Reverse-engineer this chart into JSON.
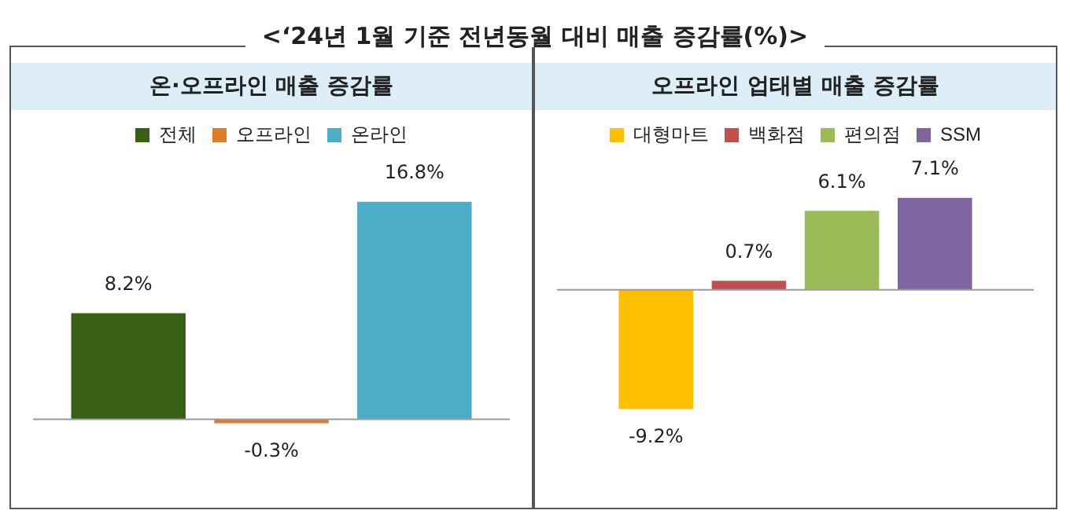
{
  "chart_data": [
    {
      "type": "bar",
      "title": "<‘24년 1월 기준 전년동월 대비 매출 증감률(%)>",
      "subtitle": "온·오프라인 매출 증감률",
      "categories": [
        null
      ],
      "legend": "top",
      "tick_labels": false,
      "series": [
        {
          "name": "전체",
          "color": "#376015",
          "values": [
            8.2
          ],
          "value_labels": [
            "8.2%"
          ]
        },
        {
          "name": "오프라인",
          "color": "#e07b29",
          "values": [
            -0.3
          ],
          "value_labels": [
            "-0.3%"
          ]
        },
        {
          "name": "온라인",
          "color": "#4badc6",
          "values": [
            16.8
          ],
          "value_labels": [
            "16.8%"
          ]
        }
      ]
    },
    {
      "type": "bar",
      "subtitle": "오프라인 업태별 매출 증감률",
      "categories": [
        null
      ],
      "legend": "top",
      "tick_labels": false,
      "series": [
        {
          "name": "대형마트",
          "color": "#ffc000",
          "values": [
            -9.2
          ],
          "value_labels": [
            "-9.2%"
          ]
        },
        {
          "name": "백화점",
          "color": "#c0504d",
          "values": [
            0.7
          ],
          "value_labels": [
            "0.7%"
          ]
        },
        {
          "name": "편의점",
          "color": "#9bbb59",
          "values": [
            6.1
          ],
          "value_labels": [
            "6.1%"
          ]
        },
        {
          "name": "SSM",
          "color": "#8064a2",
          "values": [
            7.1
          ],
          "value_labels": [
            "7.1%"
          ]
        }
      ]
    }
  ]
}
